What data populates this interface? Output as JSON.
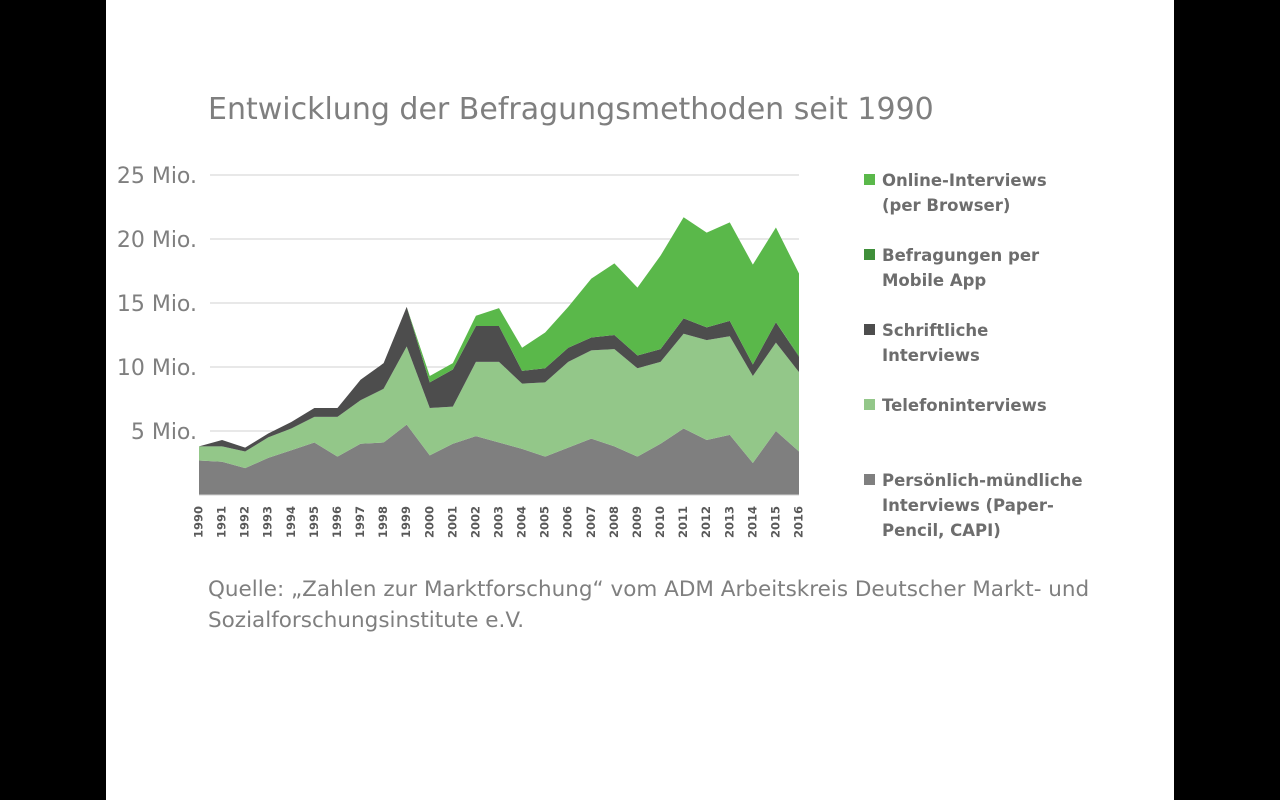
{
  "slide": {
    "title": "Entwicklung der Befragungsmethoden seit 1990",
    "source_line1": "Quelle: „Zahlen zur Marktforschung“ vom ADM Arbeitskreis Deutscher Markt- und",
    "source_line2": "Sozialforschungsinstitute e.V."
  },
  "chart_data": {
    "type": "area",
    "stacked": true,
    "title": "Entwicklung der Befragungsmethoden seit 1990",
    "x": [
      1990,
      1991,
      1992,
      1993,
      1994,
      1995,
      1996,
      1997,
      1998,
      1999,
      2000,
      2001,
      2002,
      2003,
      2004,
      2005,
      2006,
      2007,
      2008,
      2009,
      2010,
      2011,
      2012,
      2013,
      2014,
      2015,
      2016
    ],
    "x_tick_labels": [
      "1990",
      "1991",
      "1992",
      "1993",
      "1994",
      "1995",
      "1996",
      "1997",
      "1998",
      "1999",
      "2000",
      "2001",
      "2002",
      "2003",
      "2004",
      "2005",
      "2006",
      "2007",
      "2008",
      "2009",
      "2010",
      "2011",
      "2012",
      "2013",
      "2014",
      "2015",
      "2016"
    ],
    "y_tick_labels": [
      "5 Mio.",
      "10 Mio.",
      "15 Mio.",
      "20 Mio.",
      "25 Mio."
    ],
    "y_ticks": [
      5,
      10,
      15,
      20,
      25
    ],
    "ylim": [
      0,
      25
    ],
    "grid": true,
    "legend_position": "right",
    "series": [
      {
        "name": "Persönlich-mündliche Interviews (Paper-Pencil, CAPI)",
        "legend_label": "Persönlich-mündliche\nInterviews (Paper-\nPencil, CAPI)",
        "color": "#7f7f7f",
        "values": [
          2.7,
          2.6,
          2.1,
          2.9,
          3.5,
          4.1,
          3.0,
          4.0,
          4.1,
          5.5,
          3.1,
          4.0,
          4.6,
          4.1,
          3.6,
          3.0,
          3.7,
          4.4,
          3.8,
          3.0,
          4.0,
          5.2,
          4.3,
          4.7,
          2.5,
          5.0,
          3.4
        ]
      },
      {
        "name": "Telefoninterviews",
        "legend_label": "Telefoninterviews",
        "color": "#93c789",
        "values": [
          1.1,
          1.2,
          1.3,
          1.6,
          1.7,
          2.0,
          3.1,
          3.4,
          4.2,
          6.1,
          3.7,
          2.9,
          5.8,
          6.3,
          5.1,
          5.8,
          6.7,
          6.9,
          7.6,
          6.9,
          6.4,
          7.4,
          7.8,
          7.7,
          6.8,
          6.9,
          6.2
        ]
      },
      {
        "name": "Schriftliche Interviews",
        "legend_label": "Schriftliche\nInterviews",
        "color": "#4d4d4d",
        "values": [
          0.0,
          0.5,
          0.3,
          0.3,
          0.5,
          0.7,
          0.7,
          1.6,
          2.0,
          3.1,
          2.0,
          2.9,
          2.8,
          2.8,
          1.0,
          1.1,
          1.1,
          1.0,
          1.1,
          1.0,
          1.0,
          1.2,
          1.0,
          1.2,
          0.9,
          1.6,
          1.2
        ]
      },
      {
        "name": "Befragungen per Mobile App",
        "legend_label": "Befragungen per\nMobile App",
        "color": "#3f8f3a",
        "values": [
          0,
          0,
          0,
          0,
          0,
          0,
          0,
          0,
          0,
          0,
          0,
          0,
          0,
          0,
          0,
          0,
          0,
          0,
          0,
          0,
          0,
          0,
          0,
          0,
          0,
          0,
          0.1
        ]
      },
      {
        "name": "Online-Interviews (per Browser)",
        "legend_label": "Online-Interviews\n(per Browser)",
        "color": "#5ab84a",
        "values": [
          0,
          0,
          0,
          0,
          0,
          0,
          0,
          0,
          0,
          0,
          0.5,
          0.5,
          0.8,
          1.4,
          1.8,
          2.8,
          3.2,
          4.6,
          5.6,
          5.3,
          7.3,
          7.9,
          7.4,
          7.7,
          7.8,
          7.4,
          6.4
        ]
      }
    ]
  }
}
